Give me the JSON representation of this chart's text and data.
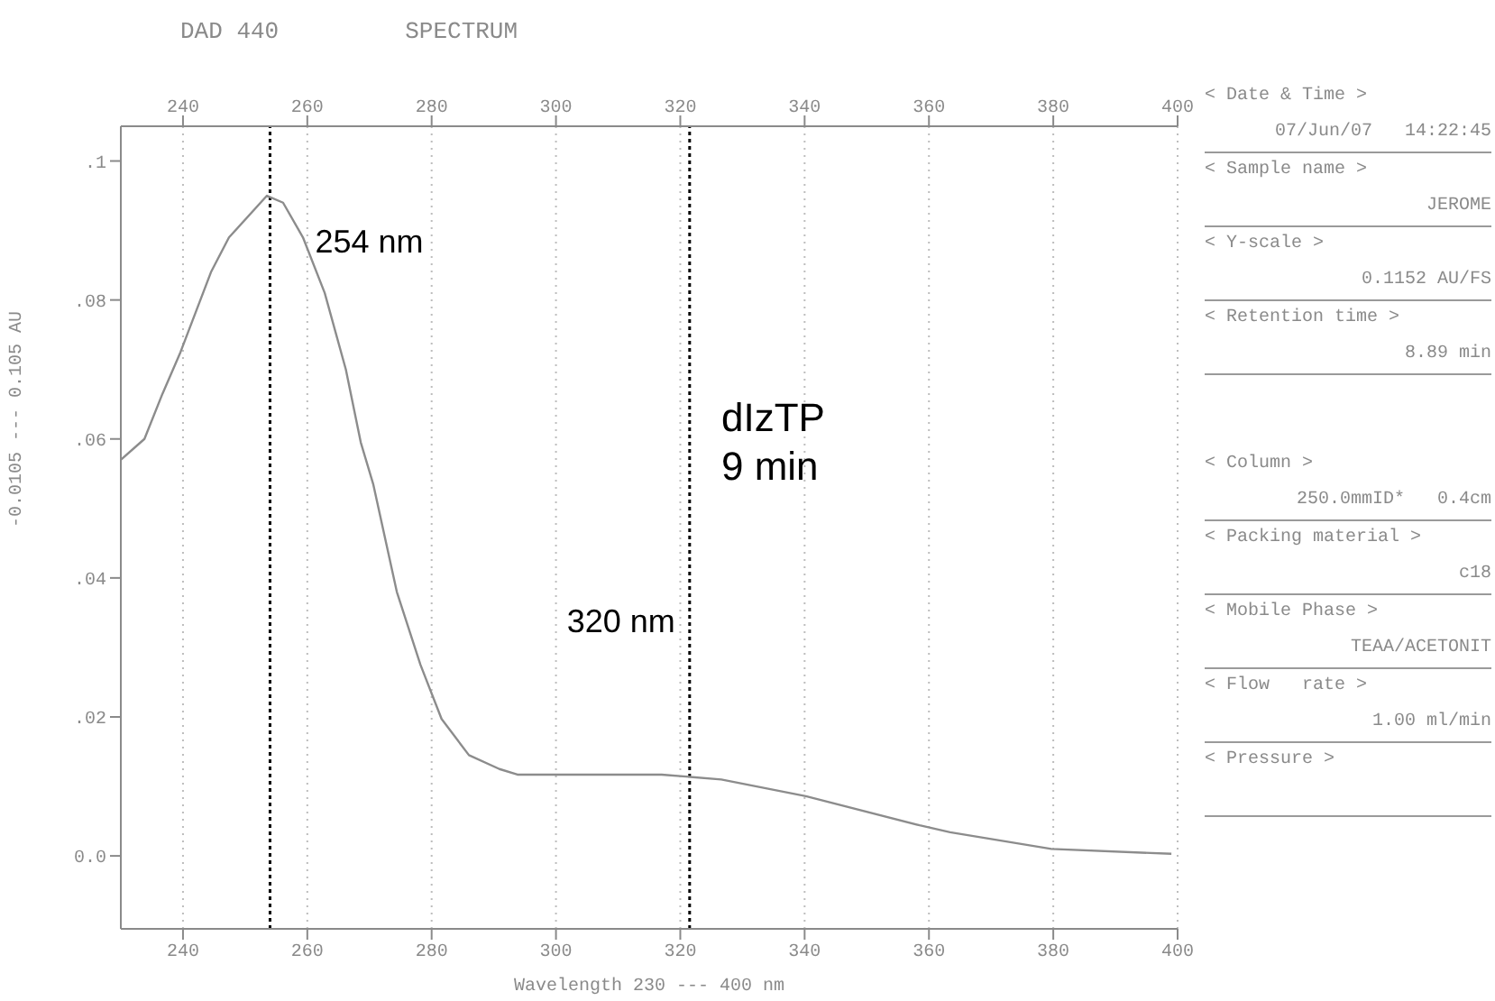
{
  "chart_data": [
    {
      "type": "line",
      "title": "DAD 440",
      "subtitle": "SPECTRUM",
      "xlabel": "Wavelength  230 --- 400 nm",
      "ylabel": "-0.0105 --- 0.105 AU",
      "x": [
        230,
        233.8,
        236.7,
        239.6,
        244.5,
        247.4,
        253.5,
        256.1,
        259.3,
        262.8,
        266.2,
        268.6,
        270.6,
        274.4,
        278.2,
        281.6,
        286,
        290.9,
        293.8,
        317,
        326.6,
        340.2,
        358.5,
        363.4,
        379.7,
        399
      ],
      "series": [
        {
          "color": "#8c8c8c",
          "values": [
            0.057,
            0.06,
            0.0665,
            0.0725,
            0.084,
            0.089,
            0.095,
            0.094,
            0.089,
            0.081,
            0.07,
            0.0595,
            0.0535,
            0.038,
            0.0275,
            0.0197,
            0.0145,
            0.0125,
            0.0117,
            0.0117,
            0.011,
            0.0086,
            0.0044,
            0.0034,
            0.001,
            0.0003
          ]
        }
      ],
      "xlim": [
        230,
        400
      ],
      "xticks": [
        240,
        260,
        280,
        300,
        320,
        340,
        360,
        380,
        400
      ],
      "x2lim": [
        230,
        400
      ],
      "x2ticks": [
        240,
        260,
        280,
        300,
        320,
        340,
        360,
        380,
        400
      ],
      "ylim": [
        -0.0105,
        0.105
      ],
      "yticks": [
        {
          "value": 0,
          "label": "0.0"
        },
        {
          "value": 0.02,
          "label": ".02"
        },
        {
          "value": 0.04,
          "label": ".04"
        },
        {
          "value": 0.06,
          "label": ".06"
        },
        {
          "value": 0.08,
          "label": ".08"
        },
        {
          "value": 0.1,
          "label": ".1"
        }
      ],
      "grid": true,
      "marker": "none",
      "ref_lines": [
        {
          "axis": "x",
          "value": 254,
          "label": "254 nm",
          "color": "#000000",
          "line_style": "dotted"
        },
        {
          "axis": "x",
          "value": 321.5,
          "label": "320 nm",
          "color": "#000000",
          "line_style": "dotted"
        }
      ],
      "annotations": [
        "dIzTP",
        "9 min"
      ]
    },
    {
      "type": "other",
      "annotations": [
        "< Date & Time >",
        "07/Jun/07   14:22:45",
        "< Sample name >",
        "JEROME",
        "< Y-scale >",
        "0.1152 AU/FS",
        "< Retention time >",
        "8.89 min",
        "< Column >",
        "250.0mmID*   0.4cm",
        "< Packing material >",
        "c18",
        "< Mobile Phase >",
        "TEAA/ACETONIT",
        "< Flow   rate >",
        "1.00 ml/min",
        "< Pressure >"
      ]
    }
  ]
}
